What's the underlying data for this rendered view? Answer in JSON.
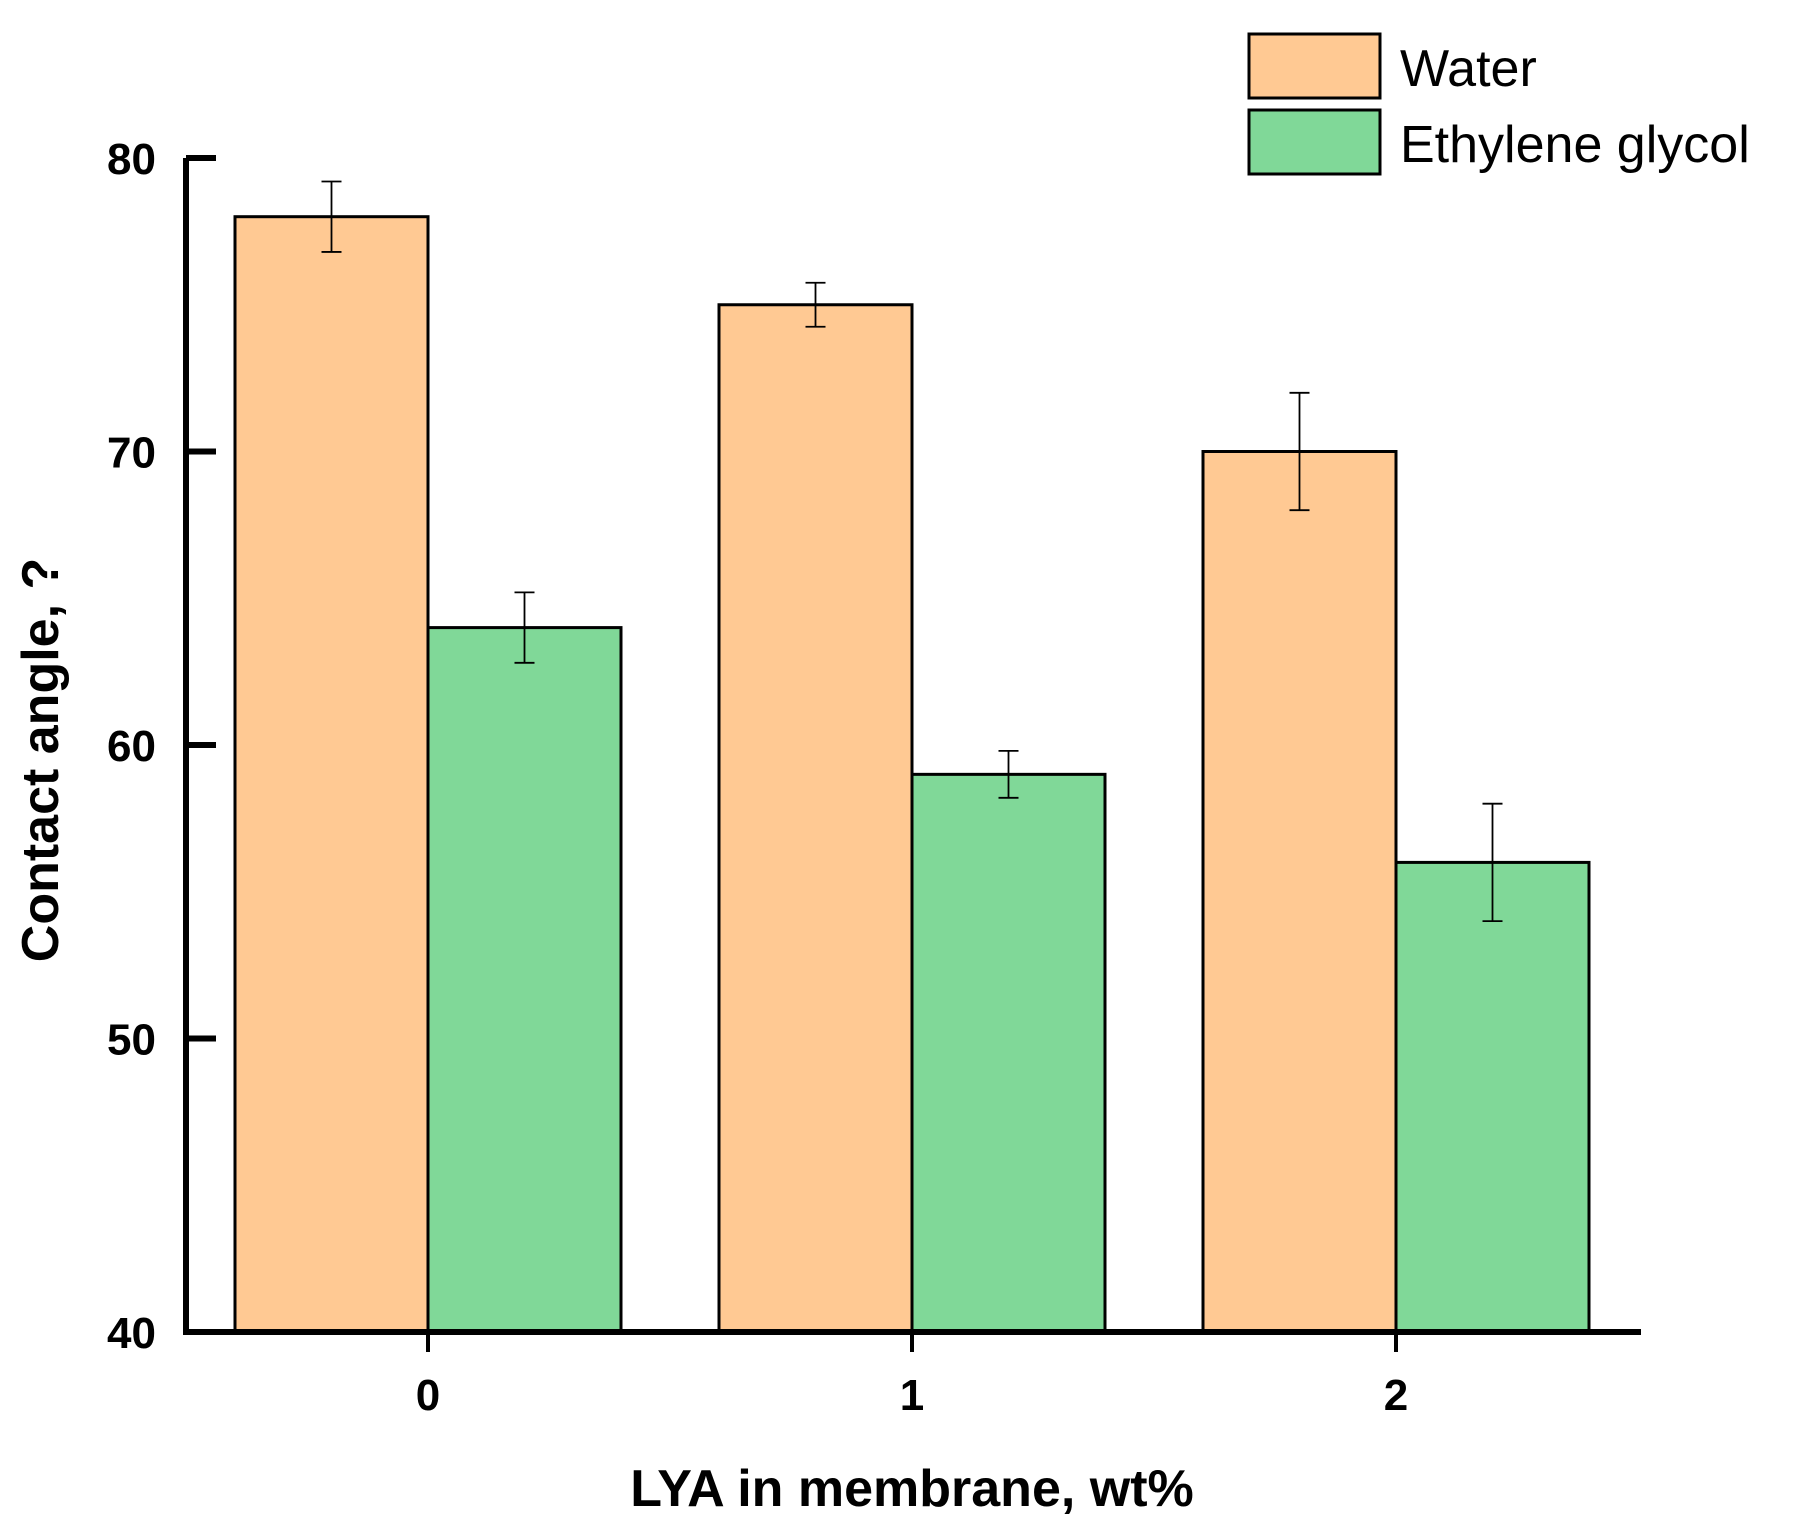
{
  "chart_data": {
    "type": "bar",
    "title": "",
    "xlabel": "LYA in membrane, wt%",
    "ylabel": "Contact angle, ?",
    "categories": [
      "0",
      "1",
      "2"
    ],
    "series": [
      {
        "name": "Water",
        "color": "#FFC993",
        "values": [
          78,
          75,
          70
        ],
        "errors": [
          1.2,
          0.75,
          2.0
        ]
      },
      {
        "name": "Ethylene glycol",
        "color": "#80D898",
        "values": [
          64,
          59,
          56
        ],
        "errors": [
          1.2,
          0.8,
          2.0
        ]
      }
    ],
    "ylim": [
      40,
      80
    ],
    "yticks": [
      40,
      50,
      60,
      70,
      80
    ],
    "grid": false,
    "legend_position": "top-right"
  }
}
